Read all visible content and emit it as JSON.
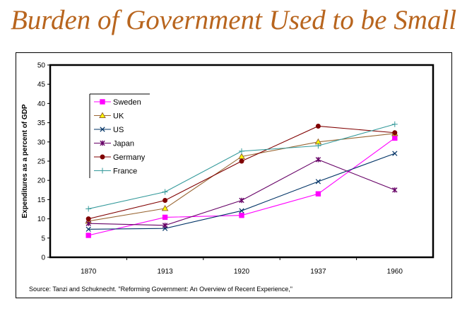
{
  "title": "Burden of Government Used to be Small",
  "source": "Source: Tanzi and Schuknecht. \"Reforming Government: An Overview of Recent Experience,\"",
  "chart_data": {
    "type": "line",
    "title": "Burden of Government Used to be Small",
    "xlabel": "",
    "ylabel": "Expenditures as a percent of GDP",
    "categories": [
      "1870",
      "1913",
      "1920",
      "1937",
      "1960"
    ],
    "ylim": [
      0,
      50
    ],
    "yticks": [
      0,
      5,
      10,
      15,
      20,
      25,
      30,
      35,
      40,
      45,
      50
    ],
    "grid": false,
    "legend_position": "top-left",
    "series": [
      {
        "name": "Sweden",
        "color": "#ff00ff",
        "marker": "square",
        "values": [
          5.7,
          10.4,
          10.9,
          16.5,
          31.0
        ]
      },
      {
        "name": "UK",
        "color": "#996633",
        "marker": "triangle",
        "marker_fill": "#ffff00",
        "values": [
          9.4,
          12.7,
          26.2,
          30.0,
          32.2
        ]
      },
      {
        "name": "US",
        "color": "#003366",
        "marker": "x",
        "values": [
          7.3,
          7.5,
          12.1,
          19.7,
          27.0
        ]
      },
      {
        "name": "Japan",
        "color": "#660066",
        "marker": "star",
        "values": [
          8.8,
          8.3,
          14.8,
          25.4,
          17.5
        ]
      },
      {
        "name": "Germany",
        "color": "#800000",
        "marker": "circle",
        "values": [
          10.0,
          14.8,
          25.0,
          34.1,
          32.4
        ]
      },
      {
        "name": "France",
        "color": "#33999a",
        "marker": "plus",
        "values": [
          12.6,
          17.0,
          27.6,
          29.0,
          34.6
        ]
      }
    ]
  }
}
